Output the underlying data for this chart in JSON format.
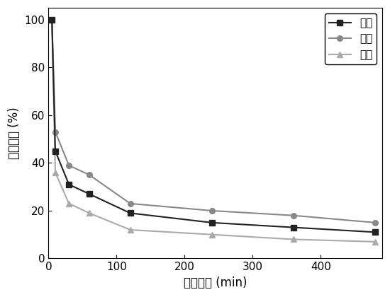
{
  "x_total": [
    5,
    10,
    30,
    60,
    120,
    240,
    360,
    480
  ],
  "y_total": [
    100,
    45,
    31,
    27,
    19,
    15,
    13,
    11
  ],
  "x_weak": [
    5,
    10,
    30,
    60,
    120,
    240,
    360,
    480
  ],
  "y_weak": [
    100,
    53,
    39,
    35,
    23,
    20,
    18,
    15
  ],
  "x_strong": [
    5,
    10,
    30,
    60,
    120,
    240,
    360,
    480
  ],
  "y_strong": [
    100,
    36,
    23,
    19,
    12,
    10,
    8,
    7
  ],
  "color_total": "#222222",
  "color_weak": "#888888",
  "color_strong": "#aaaaaa",
  "xlabel": "处理时间 (min)",
  "ylabel": "相对酸量 (%)",
  "legend_total": "总酸",
  "legend_weak": "弱酸",
  "legend_strong": "强酸",
  "xlim": [
    0,
    490
  ],
  "ylim": [
    0,
    105
  ],
  "xticks": [
    0,
    100,
    200,
    300,
    400
  ],
  "yticks": [
    0,
    20,
    40,
    60,
    80,
    100
  ]
}
